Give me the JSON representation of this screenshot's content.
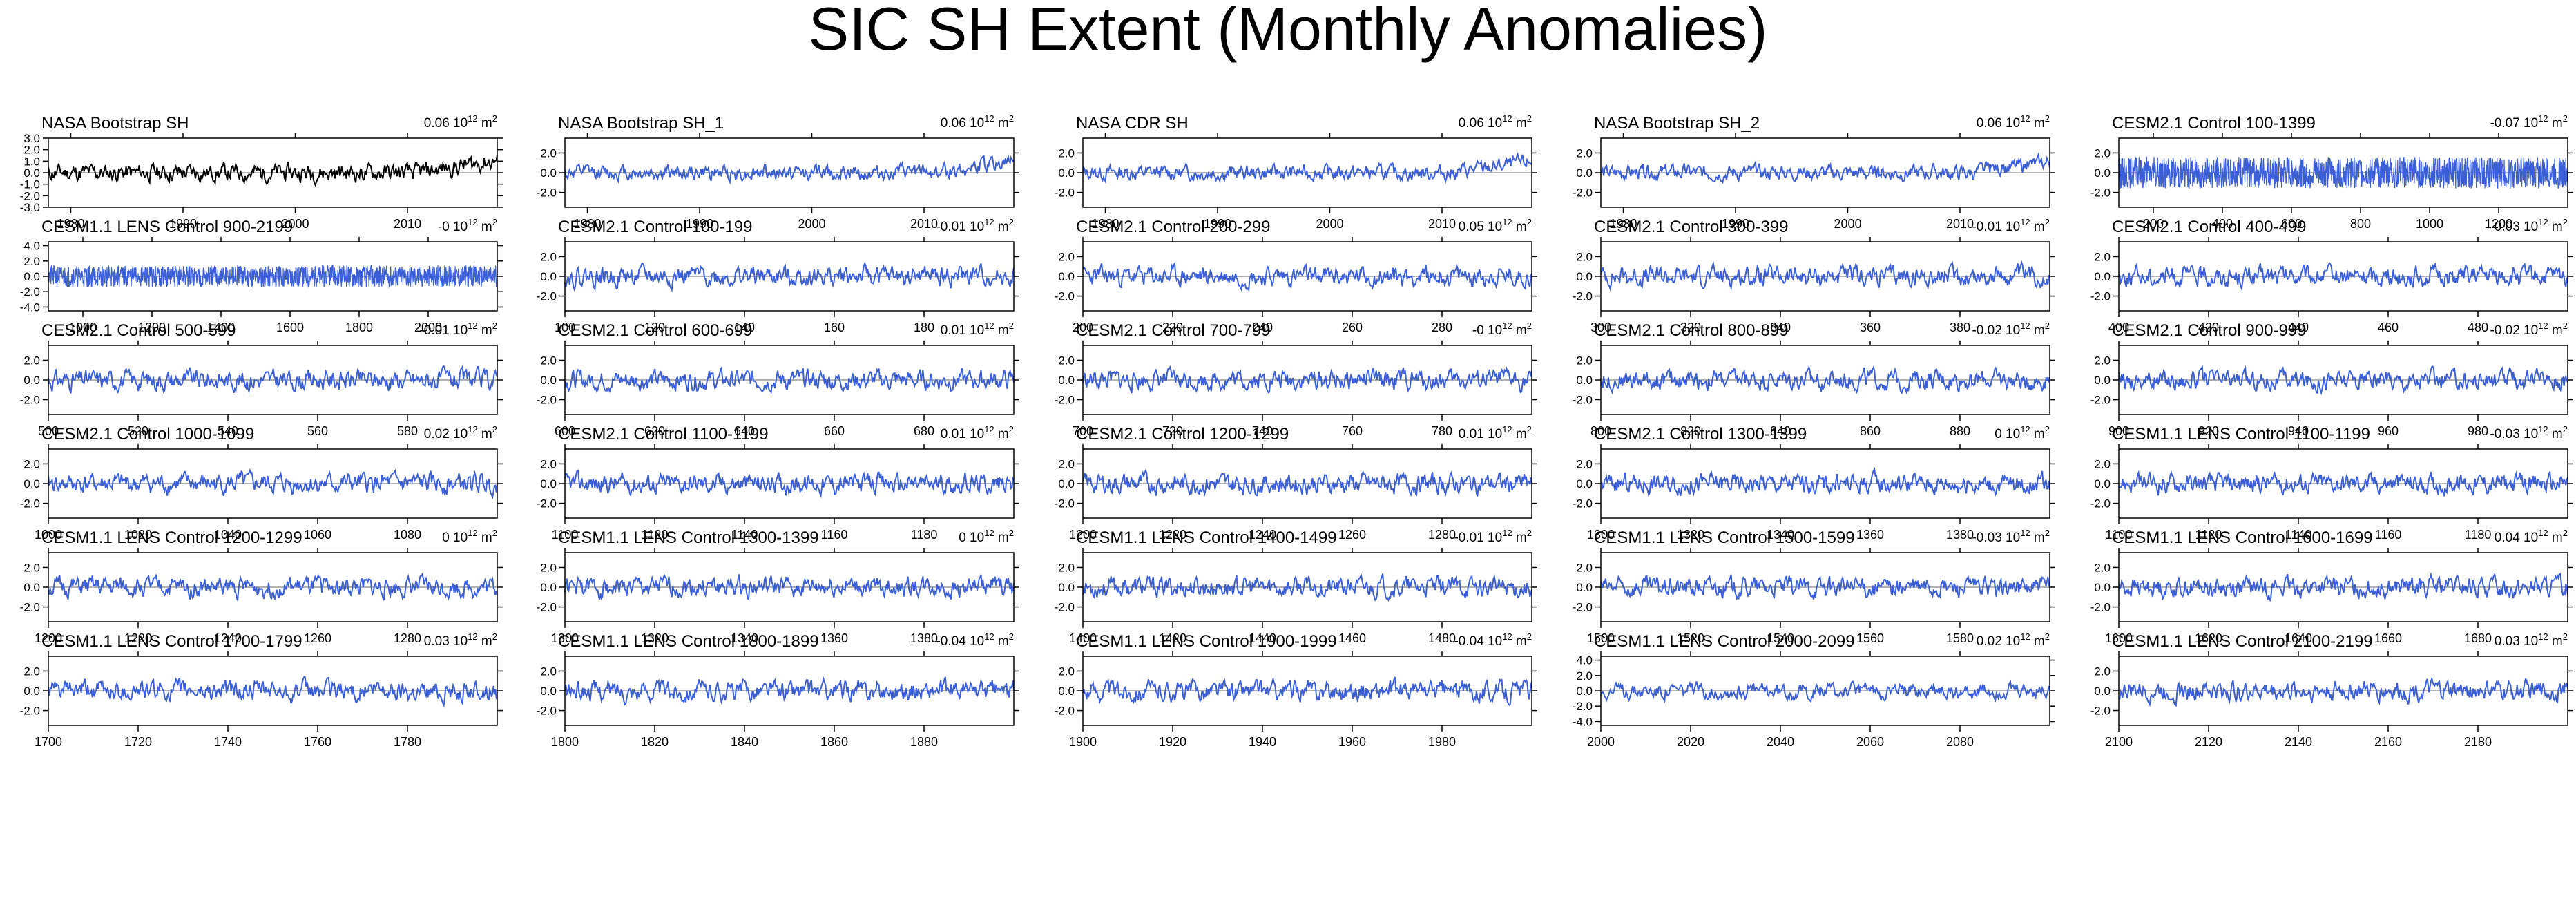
{
  "title": "SIC SH Extent (Monthly Anomalies)",
  "colors": {
    "obs": "#000000",
    "model": "#3b5fd8",
    "zero": "#9a9a9a",
    "text": "#000000"
  },
  "chart_data": [
    {
      "type": "line",
      "title": "NASA Bootstrap SH",
      "mean": "0.06",
      "unit": "10",
      "unit_exp": "12",
      "unit_tail": " m",
      "unit_tail_exp": "2",
      "xlim": [
        1978,
        2018
      ],
      "xticks": [
        1980,
        1990,
        2000,
        2010
      ],
      "ylim": [
        -3,
        3
      ],
      "yticks": [
        3,
        2,
        1,
        0,
        -1,
        -2,
        -3
      ],
      "ytick_labels": [
        "3.0",
        "2.0",
        "1.0",
        "0.0",
        "-1.0",
        "-2.0",
        "-3.0"
      ],
      "observed": true,
      "trend": "rising",
      "amp": 0.6,
      "seed": 11
    },
    {
      "type": "line",
      "title": "NASA Bootstrap SH_1",
      "mean": "0.06",
      "unit": "10",
      "unit_exp": "12",
      "unit_tail": " m",
      "unit_tail_exp": "2",
      "xlim": [
        1978,
        2018
      ],
      "xticks": [
        1980,
        1990,
        2000,
        2010
      ],
      "ylim": [
        -3.5,
        3.5
      ],
      "yticks": [
        2,
        0,
        -2
      ],
      "ytick_labels": [
        "2.0",
        "0.0",
        "-2.0"
      ],
      "trend": "rising",
      "amp": 0.6,
      "seed": 12
    },
    {
      "type": "line",
      "title": "NASA CDR SH",
      "mean": "0.06",
      "unit": "10",
      "unit_exp": "12",
      "unit_tail": " m",
      "unit_tail_exp": "2",
      "xlim": [
        1978,
        2018
      ],
      "xticks": [
        1980,
        1990,
        2000,
        2010
      ],
      "ylim": [
        -3.5,
        3.5
      ],
      "yticks": [
        2,
        0,
        -2
      ],
      "ytick_labels": [
        "2.0",
        "0.0",
        "-2.0"
      ],
      "trend": "rising",
      "amp": 0.6,
      "seed": 13
    },
    {
      "type": "line",
      "title": "NASA Bootstrap SH_2",
      "mean": "0.06",
      "unit": "10",
      "unit_exp": "12",
      "unit_tail": " m",
      "unit_tail_exp": "2",
      "xlim": [
        1978,
        2018
      ],
      "xticks": [
        1980,
        1990,
        2000,
        2010
      ],
      "ylim": [
        -3.5,
        3.5
      ],
      "yticks": [
        2,
        0,
        -2
      ],
      "ytick_labels": [
        "2.0",
        "0.0",
        "-2.0"
      ],
      "trend": "rising",
      "amp": 0.6,
      "seed": 14
    },
    {
      "type": "line",
      "title": "CESM2.1 Control 100-1399",
      "mean": "-0.07",
      "unit": "10",
      "unit_exp": "12",
      "unit_tail": " m",
      "unit_tail_exp": "2",
      "xlim": [
        100,
        1400
      ],
      "xticks": [
        200,
        400,
        600,
        800,
        1000,
        1200
      ],
      "ylim": [
        -3.5,
        3.5
      ],
      "yticks": [
        2,
        0,
        -2
      ],
      "ytick_labels": [
        "2.0",
        "0.0",
        "-2.0"
      ],
      "dense": true,
      "amp": 1.0,
      "seed": 15
    },
    {
      "type": "line",
      "title": "CESM1.1 LENS Control 900-2199",
      "mean": "-0",
      "unit": "10",
      "unit_exp": "12",
      "unit_tail": " m",
      "unit_tail_exp": "2",
      "xlim": [
        900,
        2200
      ],
      "xticks": [
        1000,
        1200,
        1400,
        1600,
        1800,
        2000
      ],
      "ylim": [
        -4.5,
        4.5
      ],
      "yticks": [
        4,
        2,
        0,
        -2,
        -4
      ],
      "ytick_labels": [
        "4.0",
        "2.0",
        "0.0",
        "-2.0",
        "-4.0"
      ],
      "dense": true,
      "amp": 0.9,
      "seed": 21
    },
    {
      "type": "line",
      "title": "CESM2.1 Control 100-199",
      "mean": "-0.01",
      "unit": "10",
      "unit_exp": "12",
      "unit_tail": " m",
      "unit_tail_exp": "2",
      "xlim": [
        100,
        200
      ],
      "xticks": [
        100,
        120,
        140,
        160,
        180
      ],
      "ylim": [
        -3.5,
        3.5
      ],
      "yticks": [
        2,
        0,
        -2
      ],
      "ytick_labels": [
        "2.0",
        "0.0",
        "-2.0"
      ],
      "amp": 0.8,
      "seed": 22
    },
    {
      "type": "line",
      "title": "CESM2.1 Control 200-299",
      "mean": "0.05",
      "unit": "10",
      "unit_exp": "12",
      "unit_tail": " m",
      "unit_tail_exp": "2",
      "xlim": [
        200,
        300
      ],
      "xticks": [
        200,
        220,
        240,
        260,
        280
      ],
      "ylim": [
        -3.5,
        3.5
      ],
      "yticks": [
        2,
        0,
        -2
      ],
      "ytick_labels": [
        "2.0",
        "0.0",
        "-2.0"
      ],
      "amp": 0.8,
      "seed": 23
    },
    {
      "type": "line",
      "title": "CESM2.1 Control 300-399",
      "mean": "-0.01",
      "unit": "10",
      "unit_exp": "12",
      "unit_tail": " m",
      "unit_tail_exp": "2",
      "xlim": [
        300,
        400
      ],
      "xticks": [
        300,
        320,
        340,
        360,
        380
      ],
      "ylim": [
        -3.5,
        3.5
      ],
      "yticks": [
        2,
        0,
        -2
      ],
      "ytick_labels": [
        "2.0",
        "0.0",
        "-2.0"
      ],
      "amp": 0.8,
      "seed": 24
    },
    {
      "type": "line",
      "title": "CESM2.1 Control 400-499",
      "mean": "0.03",
      "unit": "10",
      "unit_exp": "12",
      "unit_tail": " m",
      "unit_tail_exp": "2",
      "xlim": [
        400,
        500
      ],
      "xticks": [
        400,
        420,
        440,
        460,
        480
      ],
      "ylim": [
        -3.5,
        3.5
      ],
      "yticks": [
        2,
        0,
        -2
      ],
      "ytick_labels": [
        "2.0",
        "0.0",
        "-2.0"
      ],
      "amp": 0.8,
      "seed": 25
    },
    {
      "type": "line",
      "title": "CESM2.1 Control 500-599",
      "mean": "-0.01",
      "unit": "10",
      "unit_exp": "12",
      "unit_tail": " m",
      "unit_tail_exp": "2",
      "xlim": [
        500,
        600
      ],
      "xticks": [
        500,
        520,
        540,
        560,
        580
      ],
      "ylim": [
        -3.5,
        3.5
      ],
      "yticks": [
        2,
        0,
        -2
      ],
      "ytick_labels": [
        "2.0",
        "0.0",
        "-2.0"
      ],
      "amp": 0.8,
      "seed": 31
    },
    {
      "type": "line",
      "title": "CESM2.1 Control 600-699",
      "mean": "0.01",
      "unit": "10",
      "unit_exp": "12",
      "unit_tail": " m",
      "unit_tail_exp": "2",
      "xlim": [
        600,
        700
      ],
      "xticks": [
        600,
        620,
        640,
        660,
        680
      ],
      "ylim": [
        -3.5,
        3.5
      ],
      "yticks": [
        2,
        0,
        -2
      ],
      "ytick_labels": [
        "2.0",
        "0.0",
        "-2.0"
      ],
      "amp": 0.8,
      "seed": 32
    },
    {
      "type": "line",
      "title": "CESM2.1 Control 700-799",
      "mean": "-0",
      "unit": "10",
      "unit_exp": "12",
      "unit_tail": " m",
      "unit_tail_exp": "2",
      "xlim": [
        700,
        800
      ],
      "xticks": [
        700,
        720,
        740,
        760,
        780
      ],
      "ylim": [
        -3.5,
        3.5
      ],
      "yticks": [
        2,
        0,
        -2
      ],
      "ytick_labels": [
        "2.0",
        "0.0",
        "-2.0"
      ],
      "amp": 0.8,
      "seed": 33
    },
    {
      "type": "line",
      "title": "CESM2.1 Control 800-899",
      "mean": "-0.02",
      "unit": "10",
      "unit_exp": "12",
      "unit_tail": " m",
      "unit_tail_exp": "2",
      "xlim": [
        800,
        900
      ],
      "xticks": [
        800,
        820,
        840,
        860,
        880
      ],
      "ylim": [
        -3.5,
        3.5
      ],
      "yticks": [
        2,
        0,
        -2
      ],
      "ytick_labels": [
        "2.0",
        "0.0",
        "-2.0"
      ],
      "amp": 0.8,
      "seed": 34
    },
    {
      "type": "line",
      "title": "CESM2.1 Control 900-999",
      "mean": "-0.02",
      "unit": "10",
      "unit_exp": "12",
      "unit_tail": " m",
      "unit_tail_exp": "2",
      "xlim": [
        900,
        1000
      ],
      "xticks": [
        900,
        920,
        940,
        960,
        980
      ],
      "ylim": [
        -3.5,
        3.5
      ],
      "yticks": [
        2,
        0,
        -2
      ],
      "ytick_labels": [
        "2.0",
        "0.0",
        "-2.0"
      ],
      "amp": 0.8,
      "seed": 35
    },
    {
      "type": "line",
      "title": "CESM2.1 Control 1000-1099",
      "mean": "0.02",
      "unit": "10",
      "unit_exp": "12",
      "unit_tail": " m",
      "unit_tail_exp": "2",
      "xlim": [
        1000,
        1100
      ],
      "xticks": [
        1000,
        1020,
        1040,
        1060,
        1080
      ],
      "ylim": [
        -3.5,
        3.5
      ],
      "yticks": [
        2,
        0,
        -2
      ],
      "ytick_labels": [
        "2.0",
        "0.0",
        "-2.0"
      ],
      "amp": 0.8,
      "seed": 41
    },
    {
      "type": "line",
      "title": "CESM2.1 Control 1100-1199",
      "mean": "0.01",
      "unit": "10",
      "unit_exp": "12",
      "unit_tail": " m",
      "unit_tail_exp": "2",
      "xlim": [
        1100,
        1200
      ],
      "xticks": [
        1100,
        1120,
        1140,
        1160,
        1180
      ],
      "ylim": [
        -3.5,
        3.5
      ],
      "yticks": [
        2,
        0,
        -2
      ],
      "ytick_labels": [
        "2.0",
        "0.0",
        "-2.0"
      ],
      "amp": 0.8,
      "seed": 42
    },
    {
      "type": "line",
      "title": "CESM2.1 Control 1200-1299",
      "mean": "0.01",
      "unit": "10",
      "unit_exp": "12",
      "unit_tail": " m",
      "unit_tail_exp": "2",
      "xlim": [
        1200,
        1300
      ],
      "xticks": [
        1200,
        1220,
        1240,
        1260,
        1280
      ],
      "ylim": [
        -3.5,
        3.5
      ],
      "yticks": [
        2,
        0,
        -2
      ],
      "ytick_labels": [
        "2.0",
        "0.0",
        "-2.0"
      ],
      "amp": 0.8,
      "seed": 43
    },
    {
      "type": "line",
      "title": "CESM2.1 Control 1300-1399",
      "mean": "0",
      "unit": "10",
      "unit_exp": "12",
      "unit_tail": " m",
      "unit_tail_exp": "2",
      "xlim": [
        1300,
        1400
      ],
      "xticks": [
        1300,
        1320,
        1340,
        1360,
        1380
      ],
      "ylim": [
        -3.5,
        3.5
      ],
      "yticks": [
        2,
        0,
        -2
      ],
      "ytick_labels": [
        "2.0",
        "0.0",
        "-2.0"
      ],
      "amp": 0.8,
      "seed": 44
    },
    {
      "type": "line",
      "title": "CESM1.1 LENS Control 1100-1199",
      "mean": "-0.03",
      "unit": "10",
      "unit_exp": "12",
      "unit_tail": " m",
      "unit_tail_exp": "2",
      "xlim": [
        1100,
        1200
      ],
      "xticks": [
        1100,
        1120,
        1140,
        1160,
        1180
      ],
      "ylim": [
        -3.5,
        3.5
      ],
      "yticks": [
        2,
        0,
        -2
      ],
      "ytick_labels": [
        "2.0",
        "0.0",
        "-2.0"
      ],
      "amp": 0.8,
      "seed": 45
    },
    {
      "type": "line",
      "title": "CESM1.1 LENS Control 1200-1299",
      "mean": "0",
      "unit": "10",
      "unit_exp": "12",
      "unit_tail": " m",
      "unit_tail_exp": "2",
      "xlim": [
        1200,
        1300
      ],
      "xticks": [
        1200,
        1220,
        1240,
        1260,
        1280
      ],
      "ylim": [
        -3.5,
        3.5
      ],
      "yticks": [
        2,
        0,
        -2
      ],
      "ytick_labels": [
        "2.0",
        "0.0",
        "-2.0"
      ],
      "amp": 0.8,
      "seed": 51
    },
    {
      "type": "line",
      "title": "CESM1.1 LENS Control 1300-1399",
      "mean": "0",
      "unit": "10",
      "unit_exp": "12",
      "unit_tail": " m",
      "unit_tail_exp": "2",
      "xlim": [
        1300,
        1400
      ],
      "xticks": [
        1300,
        1320,
        1340,
        1360,
        1380
      ],
      "ylim": [
        -3.5,
        3.5
      ],
      "yticks": [
        2,
        0,
        -2
      ],
      "ytick_labels": [
        "2.0",
        "0.0",
        "-2.0"
      ],
      "amp": 0.8,
      "seed": 52
    },
    {
      "type": "line",
      "title": "CESM1.1 LENS Control 1400-1499",
      "mean": "-0.01",
      "unit": "10",
      "unit_exp": "12",
      "unit_tail": " m",
      "unit_tail_exp": "2",
      "xlim": [
        1400,
        1500
      ],
      "xticks": [
        1400,
        1420,
        1440,
        1460,
        1480
      ],
      "ylim": [
        -3.5,
        3.5
      ],
      "yticks": [
        2,
        0,
        -2
      ],
      "ytick_labels": [
        "2.0",
        "0.0",
        "-2.0"
      ],
      "amp": 0.8,
      "seed": 53
    },
    {
      "type": "line",
      "title": "CESM1.1 LENS Control 1500-1599",
      "mean": "-0.03",
      "unit": "10",
      "unit_exp": "12",
      "unit_tail": " m",
      "unit_tail_exp": "2",
      "xlim": [
        1500,
        1600
      ],
      "xticks": [
        1500,
        1520,
        1540,
        1560,
        1580
      ],
      "ylim": [
        -3.5,
        3.5
      ],
      "yticks": [
        2,
        0,
        -2
      ],
      "ytick_labels": [
        "2.0",
        "0.0",
        "-2.0"
      ],
      "amp": 0.8,
      "seed": 54
    },
    {
      "type": "line",
      "title": "CESM1.1 LENS Control 1600-1699",
      "mean": "0.04",
      "unit": "10",
      "unit_exp": "12",
      "unit_tail": " m",
      "unit_tail_exp": "2",
      "xlim": [
        1600,
        1700
      ],
      "xticks": [
        1600,
        1620,
        1640,
        1660,
        1680
      ],
      "ylim": [
        -3.5,
        3.5
      ],
      "yticks": [
        2,
        0,
        -2
      ],
      "ytick_labels": [
        "2.0",
        "0.0",
        "-2.0"
      ],
      "amp": 0.8,
      "seed": 55
    },
    {
      "type": "line",
      "title": "CESM1.1 LENS Control 1700-1799",
      "mean": "0.03",
      "unit": "10",
      "unit_exp": "12",
      "unit_tail": " m",
      "unit_tail_exp": "2",
      "xlim": [
        1700,
        1800
      ],
      "xticks": [
        1700,
        1720,
        1740,
        1760,
        1780
      ],
      "ylim": [
        -3.5,
        3.5
      ],
      "yticks": [
        2,
        0,
        -2
      ],
      "ytick_labels": [
        "2.0",
        "0.0",
        "-2.0"
      ],
      "amp": 0.8,
      "seed": 61
    },
    {
      "type": "line",
      "title": "CESM1.1 LENS Control 1800-1899",
      "mean": "-0.04",
      "unit": "10",
      "unit_exp": "12",
      "unit_tail": " m",
      "unit_tail_exp": "2",
      "xlim": [
        1800,
        1900
      ],
      "xticks": [
        1800,
        1820,
        1840,
        1860,
        1880
      ],
      "ylim": [
        -3.5,
        3.5
      ],
      "yticks": [
        2,
        0,
        -2
      ],
      "ytick_labels": [
        "2.0",
        "0.0",
        "-2.0"
      ],
      "amp": 0.8,
      "seed": 62
    },
    {
      "type": "line",
      "title": "CESM1.1 LENS Control 1900-1999",
      "mean": "-0.04",
      "unit": "10",
      "unit_exp": "12",
      "unit_tail": " m",
      "unit_tail_exp": "2",
      "xlim": [
        1900,
        2000
      ],
      "xticks": [
        1900,
        1920,
        1940,
        1960,
        1980
      ],
      "ylim": [
        -3.5,
        3.5
      ],
      "yticks": [
        2,
        0,
        -2
      ],
      "ytick_labels": [
        "2.0",
        "0.0",
        "-2.0"
      ],
      "amp": 0.8,
      "seed": 63
    },
    {
      "type": "line",
      "title": "CESM1.1 LENS Control 2000-2099",
      "mean": "0.02",
      "unit": "10",
      "unit_exp": "12",
      "unit_tail": " m",
      "unit_tail_exp": "2",
      "xlim": [
        2000,
        2100
      ],
      "xticks": [
        2000,
        2020,
        2040,
        2060,
        2080
      ],
      "ylim": [
        -4.5,
        4.5
      ],
      "yticks": [
        4,
        2,
        0,
        -2,
        -4
      ],
      "ytick_labels": [
        "4.0",
        "2.0",
        "0.0",
        "-2.0",
        "-4.0"
      ],
      "amp": 0.8,
      "seed": 64
    },
    {
      "type": "line",
      "title": "CESM1.1 LENS Control 2100-2199",
      "mean": "0.03",
      "unit": "10",
      "unit_exp": "12",
      "unit_tail": " m",
      "unit_tail_exp": "2",
      "xlim": [
        2100,
        2200
      ],
      "xticks": [
        2100,
        2120,
        2140,
        2160,
        2180
      ],
      "ylim": [
        -3.5,
        3.5
      ],
      "yticks": [
        2,
        0,
        -2
      ],
      "ytick_labels": [
        "2.0",
        "0.0",
        "-2.0"
      ],
      "amp": 0.8,
      "seed": 65
    }
  ]
}
